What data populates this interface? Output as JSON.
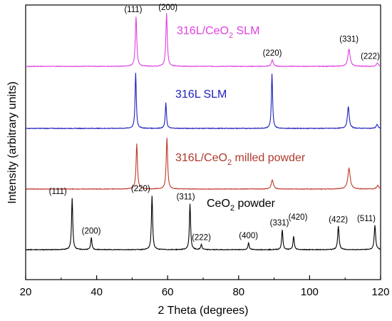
{
  "chart_data": {
    "type": "line",
    "title": "",
    "xlabel": "2 Theta (degrees)",
    "ylabel": "Intensity (arbitrary units)",
    "xlim": [
      20,
      120
    ],
    "xticks": [
      20,
      40,
      60,
      80,
      100,
      120
    ],
    "xtick_labels": [
      "20",
      "40",
      "60",
      "80",
      "100",
      "120"
    ],
    "yticks": "none",
    "grid": false,
    "legend": "inline labels",
    "series": [
      {
        "name": "316L/CeO₂ SLM",
        "label_base": "316L/CeO",
        "label_sub": "2",
        "label_tail": " SLM",
        "color": "#e040e0",
        "peaks": [
          {
            "x": 51.1,
            "h": 0.92,
            "w": 0.35,
            "label": "(111)"
          },
          {
            "x": 59.7,
            "h": 0.98,
            "w": 0.35,
            "label": "(200)"
          },
          {
            "x": 89.5,
            "h": 0.12,
            "w": 0.45,
            "label": "(220)"
          },
          {
            "x": 111.1,
            "h": 0.32,
            "w": 0.55,
            "label": "(331)"
          },
          {
            "x": 119.1,
            "h": 0.06,
            "w": 0.5,
            "label": "(222)"
          }
        ]
      },
      {
        "name": "316L SLM",
        "color": "#1f1fbf",
        "peaks": [
          {
            "x": 51.0,
            "h": 1.0,
            "w": 0.3
          },
          {
            "x": 59.5,
            "h": 0.46,
            "w": 0.3
          },
          {
            "x": 89.4,
            "h": 0.98,
            "w": 0.3
          },
          {
            "x": 110.9,
            "h": 0.39,
            "w": 0.45
          },
          {
            "x": 119.0,
            "h": 0.07,
            "w": 0.45
          }
        ]
      },
      {
        "name": "316L/CeO₂ milled powder",
        "label_base": "316L/CeO",
        "label_sub": "2",
        "label_tail": " milled powder",
        "color": "#c0392b",
        "peaks": [
          {
            "x": 51.3,
            "h": 0.88,
            "w": 0.35
          },
          {
            "x": 59.8,
            "h": 1.0,
            "w": 0.35
          },
          {
            "x": 89.5,
            "h": 0.18,
            "w": 0.5
          },
          {
            "x": 111.1,
            "h": 0.4,
            "w": 0.6
          },
          {
            "x": 119.2,
            "h": 0.07,
            "w": 0.5
          }
        ]
      },
      {
        "name": "CeO₂ powder",
        "label_base": "CeO",
        "label_sub": "2",
        "label_tail": " powder",
        "color": "#000000",
        "peaks": [
          {
            "x": 33.1,
            "h": 0.95,
            "w": 0.3,
            "label": "(111)"
          },
          {
            "x": 38.5,
            "h": 0.22,
            "w": 0.3,
            "label": "(200)"
          },
          {
            "x": 55.6,
            "h": 1.0,
            "w": 0.3,
            "label": "(220)"
          },
          {
            "x": 66.3,
            "h": 0.85,
            "w": 0.3,
            "label": "(311)"
          },
          {
            "x": 69.5,
            "h": 0.1,
            "w": 0.3,
            "label": "(222)"
          },
          {
            "x": 82.8,
            "h": 0.13,
            "w": 0.3,
            "label": "(400)"
          },
          {
            "x": 92.3,
            "h": 0.37,
            "w": 0.3,
            "label": "(331)"
          },
          {
            "x": 95.5,
            "h": 0.25,
            "w": 0.3,
            "label": "(420)"
          },
          {
            "x": 108.1,
            "h": 0.43,
            "w": 0.35,
            "label": "(422)"
          },
          {
            "x": 118.4,
            "h": 0.45,
            "w": 0.35,
            "label": "(511)"
          }
        ]
      }
    ]
  }
}
